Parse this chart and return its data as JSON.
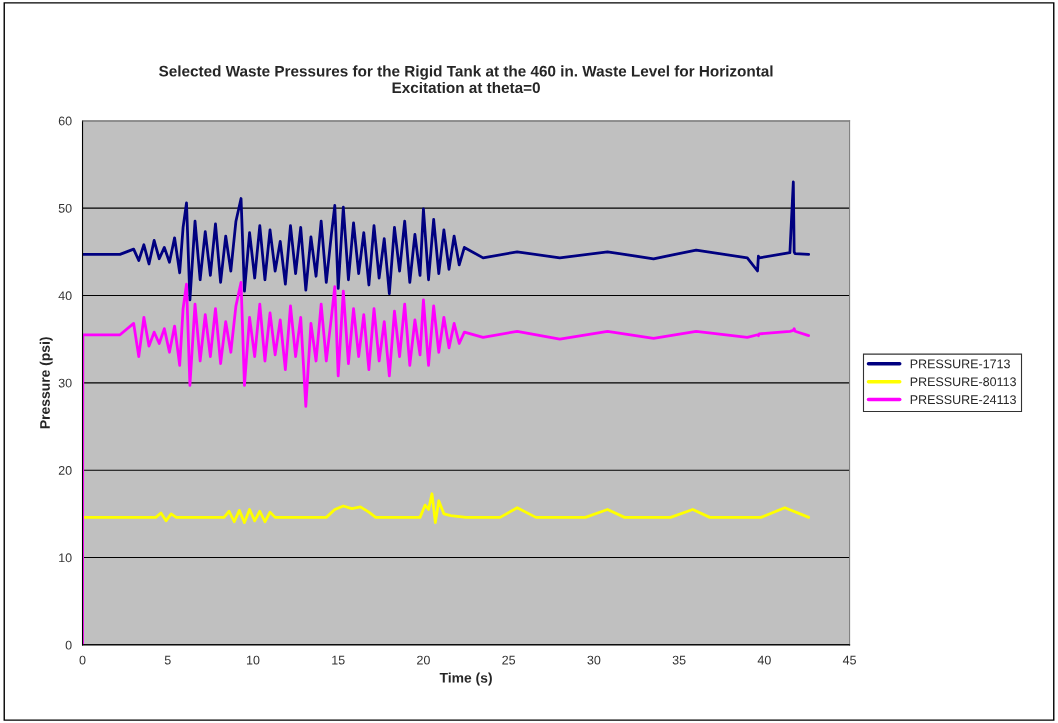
{
  "chart_data": {
    "type": "line",
    "title": "Selected Waste Pressures for the Rigid Tank at the 460 in. Waste Level for Horizontal\nExcitation at theta=0",
    "xlabel": "Time (s)",
    "ylabel": "Pressure (psi)",
    "xlim": [
      0,
      45
    ],
    "xticks": [
      0,
      5,
      10,
      15,
      20,
      25,
      30,
      35,
      40,
      45
    ],
    "ylim": [
      0,
      60
    ],
    "yticks": [
      0,
      10,
      20,
      30,
      40,
      50,
      60
    ],
    "grid": "y",
    "legend": "right",
    "marker": "none",
    "line_style": "solid",
    "series": [
      {
        "name": "PRESSURE-1713",
        "color": "#000080",
        "x": [
          0,
          2.2,
          3.0,
          3.3,
          3.6,
          3.9,
          4.2,
          4.5,
          4.8,
          5.1,
          5.4,
          5.7,
          5.9,
          6.1,
          6.3,
          6.6,
          6.9,
          7.2,
          7.5,
          7.8,
          8.1,
          8.4,
          8.7,
          9.0,
          9.3,
          9.5,
          9.8,
          10.1,
          10.4,
          10.7,
          11.0,
          11.3,
          11.6,
          11.9,
          12.2,
          12.5,
          12.8,
          13.1,
          13.4,
          13.7,
          14.0,
          14.3,
          14.6,
          14.8,
          15.0,
          15.3,
          15.6,
          15.9,
          16.2,
          16.5,
          16.8,
          17.1,
          17.4,
          17.7,
          18.0,
          18.3,
          18.6,
          18.9,
          19.2,
          19.5,
          19.8,
          20.0,
          20.3,
          20.6,
          20.9,
          21.2,
          21.5,
          21.8,
          22.1,
          22.4,
          23.5,
          25.5,
          28.0,
          30.8,
          33.5,
          36.0,
          39.0,
          39.6,
          39.65,
          39.7,
          41.5,
          41.7,
          41.75,
          41.8,
          42.6
        ],
        "values": [
          44.7,
          44.7,
          45.3,
          44.0,
          45.8,
          43.6,
          46.3,
          44.2,
          45.5,
          43.8,
          46.6,
          42.6,
          47.8,
          50.6,
          39.5,
          48.5,
          41.8,
          47.3,
          42.3,
          48.2,
          41.5,
          46.8,
          42.8,
          48.5,
          51.1,
          40.5,
          47.2,
          42.0,
          48.0,
          41.8,
          47.5,
          42.8,
          46.2,
          41.3,
          48.0,
          42.5,
          47.8,
          40.6,
          46.7,
          42.2,
          48.5,
          41.5,
          47.0,
          50.3,
          40.8,
          50.1,
          41.8,
          48.3,
          42.5,
          47.2,
          41.2,
          48.0,
          42.0,
          46.5,
          40.2,
          47.8,
          42.8,
          48.5,
          41.5,
          47.0,
          42.3,
          49.9,
          41.8,
          48.7,
          42.5,
          47.5,
          43.0,
          46.8,
          43.5,
          45.5,
          44.3,
          45.0,
          44.3,
          45.0,
          44.2,
          45.2,
          44.3,
          42.8,
          44.5,
          44.3,
          44.9,
          53.0,
          45.0,
          44.8,
          44.7
        ]
      },
      {
        "name": "PRESSURE-80113",
        "color": "#ffff00",
        "x": [
          0,
          4.3,
          4.6,
          4.9,
          5.2,
          5.5,
          8.3,
          8.6,
          8.9,
          9.2,
          9.5,
          9.8,
          10.1,
          10.4,
          10.7,
          11.0,
          11.3,
          14.3,
          14.8,
          15.3,
          15.8,
          16.3,
          16.8,
          17.2,
          19.8,
          20.1,
          20.3,
          20.5,
          20.7,
          20.9,
          21.2,
          21.6,
          22.5,
          24.5,
          25.5,
          26.6,
          29.5,
          30.8,
          31.8,
          34.5,
          35.8,
          36.8,
          39.8,
          41.2,
          42.1,
          42.6
        ],
        "values": [
          14.6,
          14.6,
          15.1,
          14.2,
          15.0,
          14.6,
          14.6,
          15.3,
          14.1,
          15.4,
          14.0,
          15.5,
          14.2,
          15.3,
          14.1,
          15.2,
          14.6,
          14.6,
          15.5,
          15.9,
          15.6,
          15.8,
          15.2,
          14.6,
          14.6,
          16.0,
          15.5,
          17.3,
          14.0,
          16.5,
          15.0,
          14.8,
          14.6,
          14.6,
          15.7,
          14.6,
          14.6,
          15.5,
          14.6,
          14.6,
          15.5,
          14.6,
          14.6,
          15.7,
          15.0,
          14.6
        ]
      },
      {
        "name": "PRESSURE-24113",
        "color": "#ff00ff",
        "x": [
          0,
          0.02,
          2.2,
          3.0,
          3.3,
          3.6,
          3.9,
          4.2,
          4.5,
          4.8,
          5.1,
          5.4,
          5.7,
          5.9,
          6.1,
          6.3,
          6.6,
          6.9,
          7.2,
          7.5,
          7.8,
          8.1,
          8.4,
          8.7,
          9.0,
          9.3,
          9.5,
          9.8,
          10.1,
          10.4,
          10.7,
          11.0,
          11.3,
          11.6,
          11.9,
          12.2,
          12.5,
          12.8,
          13.1,
          13.4,
          13.7,
          14.0,
          14.3,
          14.6,
          14.8,
          15.0,
          15.3,
          15.6,
          15.9,
          16.2,
          16.5,
          16.8,
          17.1,
          17.4,
          17.7,
          18.0,
          18.3,
          18.6,
          18.9,
          19.2,
          19.5,
          19.8,
          20.0,
          20.3,
          20.6,
          20.9,
          21.2,
          21.5,
          21.8,
          22.1,
          22.4,
          23.5,
          25.5,
          28.0,
          30.8,
          33.5,
          36.0,
          39.0,
          39.6,
          39.65,
          39.7,
          41.5,
          41.7,
          41.75,
          41.8,
          42.6
        ],
        "values": [
          0,
          35.5,
          35.5,
          36.8,
          33.0,
          37.5,
          34.2,
          35.8,
          34.5,
          36.2,
          33.5,
          36.5,
          32.0,
          38.5,
          41.3,
          29.7,
          39.0,
          32.5,
          37.8,
          33.0,
          38.5,
          32.2,
          37.0,
          33.5,
          38.8,
          41.5,
          29.7,
          37.5,
          33.0,
          39.0,
          32.5,
          38.0,
          33.2,
          37.2,
          31.5,
          38.8,
          33.0,
          37.5,
          27.3,
          36.8,
          32.5,
          39.0,
          32.5,
          37.5,
          41.0,
          30.8,
          40.5,
          32.2,
          38.5,
          33.0,
          37.8,
          31.5,
          38.5,
          32.5,
          37.0,
          30.8,
          38.2,
          33.0,
          39.0,
          32.0,
          37.2,
          33.2,
          39.5,
          32.0,
          38.8,
          33.5,
          37.5,
          34.0,
          36.8,
          34.5,
          35.8,
          35.2,
          35.9,
          35.0,
          35.9,
          35.1,
          35.9,
          35.2,
          35.5,
          35.4,
          35.6,
          35.9,
          36.0,
          36.2,
          35.9,
          35.4
        ]
      }
    ]
  }
}
